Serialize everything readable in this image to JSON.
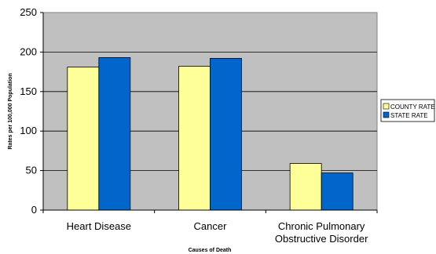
{
  "chart_data": {
    "type": "bar",
    "title": "",
    "xlabel": "Causes of Death",
    "ylabel": "Rates per 100,000 Population",
    "categories": [
      [
        "Heart Disease"
      ],
      [
        "Cancer"
      ],
      [
        "Chronic Pulmonary",
        "Obstructive Disorder"
      ]
    ],
    "series": [
      {
        "name": "COUNTY RATE",
        "color": "#ffff99",
        "values": [
          181,
          182,
          59
        ]
      },
      {
        "name": "STATE RATE",
        "color": "#0066cc",
        "values": [
          193,
          192,
          47
        ]
      }
    ],
    "ylim": [
      0,
      250
    ],
    "yticks": [
      0,
      50,
      100,
      150,
      200,
      250
    ],
    "plot_background": "#c0c0c0",
    "grid": true,
    "legend_position": "right"
  }
}
